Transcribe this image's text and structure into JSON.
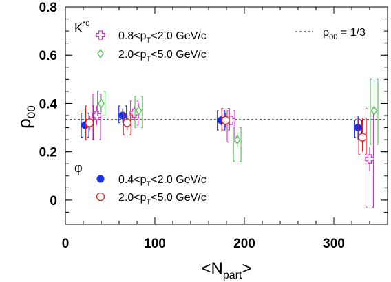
{
  "chart_data": {
    "type": "scatter",
    "xlabel": "<N",
    "xlabel_sub": "part",
    "xlabel_end": ">",
    "ylabel": "ρ",
    "ylabel_sub": "00",
    "xlim": [
      0,
      360
    ],
    "ylim": [
      -0.1,
      0.8
    ],
    "x_ticks": [
      0,
      100,
      200,
      300
    ],
    "y_ticks": [
      0,
      0.2,
      0.4,
      0.6,
      0.8
    ],
    "x_tick_labels": [
      "0",
      "100",
      "200",
      "300"
    ],
    "y_tick_labels": [
      "0",
      "0.2",
      "0.4",
      "0.6",
      "0.8"
    ],
    "reference_line": {
      "value": 0.3333,
      "legend_text": "ρ",
      "legend_sub": "00",
      "legend_rest": " = 1/3",
      "color": "#000000"
    },
    "groups": [
      {
        "name": "K",
        "superscript": "*0",
        "series": [
          {
            "name_prefix": "0.8<p",
            "name_sub": "T",
            "name_suffix": "<2.0 GeV/c",
            "marker": "cross",
            "color": "#d030d0",
            "points": [
              {
                "x": 35,
                "y": 0.35,
                "stat": [
                  0.31,
                  0.39
                ],
                "sys": [
                  0.25,
                  0.44
                ]
              },
              {
                "x": 77,
                "y": 0.36,
                "stat": [
                  0.33,
                  0.39
                ],
                "sys": [
                  0.31,
                  0.41
                ]
              },
              {
                "x": 185,
                "y": 0.33,
                "stat": [
                  0.3,
                  0.36
                ],
                "sys": [
                  0.24,
                  0.37
                ]
              },
              {
                "x": 340,
                "y": 0.17,
                "stat": [
                  0.12,
                  0.22
                ],
                "sys": [
                  -0.03,
                  0.38
                ]
              }
            ]
          },
          {
            "name_prefix": "2.0<p",
            "name_sub": "T",
            "name_suffix": "<5.0 GeV/c",
            "marker": "diamond",
            "color": "#50c050",
            "points": [
              {
                "x": 40,
                "y": 0.4,
                "stat": [
                  0.36,
                  0.44
                ],
                "sys": [
                  0.35,
                  0.45
                ]
              },
              {
                "x": 82,
                "y": 0.37,
                "stat": [
                  0.34,
                  0.4
                ],
                "sys": [
                  0.3,
                  0.43
                ]
              },
              {
                "x": 192,
                "y": 0.25,
                "stat": [
                  0.22,
                  0.28
                ],
                "sys": [
                  0.16,
                  0.3
                ]
              },
              {
                "x": 345,
                "y": 0.37,
                "stat": [
                  0.22,
                  0.5
                ],
                "sys": [
                  0.23,
                  0.5
                ]
              }
            ]
          }
        ]
      },
      {
        "name": "φ",
        "superscript": "",
        "series": [
          {
            "name_prefix": "0.4<p",
            "name_sub": "T",
            "name_suffix": "<2.0 GeV/c",
            "marker": "filled-circle",
            "color": "#1a2fe0",
            "points": [
              {
                "x": 22,
                "y": 0.31,
                "stat": [
                  0.28,
                  0.34
                ],
                "sys": [
                  0.26,
                  0.36
                ]
              },
              {
                "x": 64,
                "y": 0.35,
                "stat": [
                  0.32,
                  0.38
                ],
                "sys": [
                  0.32,
                  0.39
                ]
              },
              {
                "x": 174,
                "y": 0.33,
                "stat": [
                  0.31,
                  0.35
                ],
                "sys": [
                  0.29,
                  0.37
                ]
              },
              {
                "x": 327,
                "y": 0.3,
                "stat": [
                  0.25,
                  0.35
                ],
                "sys": [
                  0.26,
                  0.33
                ]
              }
            ]
          },
          {
            "name_prefix": "2.0<p",
            "name_sub": "T",
            "name_suffix": "<5.0 GeV/c",
            "marker": "open-circle",
            "color": "#e02020",
            "points": [
              {
                "x": 27,
                "y": 0.32,
                "stat": [
                  0.29,
                  0.35
                ],
                "sys": [
                  0.25,
                  0.39
                ]
              },
              {
                "x": 69,
                "y": 0.32,
                "stat": [
                  0.29,
                  0.35
                ],
                "sys": [
                  0.27,
                  0.36
                ]
              },
              {
                "x": 179,
                "y": 0.33,
                "stat": [
                  0.3,
                  0.36
                ],
                "sys": [
                  0.29,
                  0.38
                ]
              },
              {
                "x": 332,
                "y": 0.26,
                "stat": [
                  0.2,
                  0.34
                ],
                "sys": [
                  0.19,
                  0.34
                ]
              }
            ]
          }
        ]
      }
    ]
  }
}
